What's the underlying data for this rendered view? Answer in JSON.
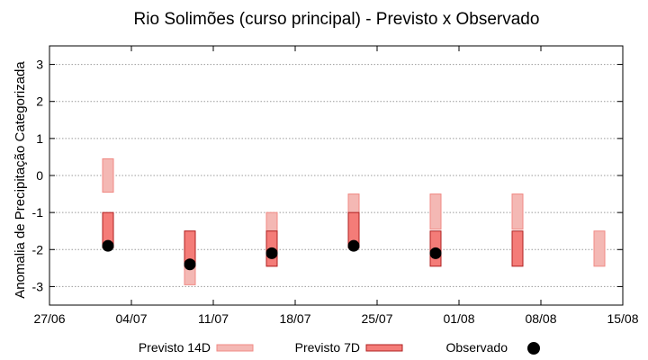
{
  "chart_data": {
    "type": "range-bar",
    "title": "Rio Solimões (curso principal) - Previsto x Observado",
    "xlabel": "",
    "ylabel": "Anomalia de Precipitação Categorizada",
    "ylim": [
      -3.5,
      3.5
    ],
    "yticks": [
      "-3",
      "-2",
      "-1",
      "0",
      "1",
      "2",
      "3"
    ],
    "xlim": [
      "2025-06-27",
      "2025-08-15"
    ],
    "xticks": [
      {
        "date": "2025-06-27",
        "label": "27/06"
      },
      {
        "date": "2025-07-04",
        "label": "04/07"
      },
      {
        "date": "2025-07-11",
        "label": "11/07"
      },
      {
        "date": "2025-07-18",
        "label": "18/07"
      },
      {
        "date": "2025-07-25",
        "label": "25/07"
      },
      {
        "date": "2025-08-01",
        "label": "01/08"
      },
      {
        "date": "2025-08-08",
        "label": "08/08"
      },
      {
        "date": "2025-08-15",
        "label": "15/08"
      }
    ],
    "grid": "horizontal-dotted",
    "legend_position": "bottom",
    "series": [
      {
        "name": "Previsto 14D",
        "kind": "range",
        "color": "#f4b8b4",
        "points": [
          {
            "date": "2025-07-02",
            "low": -0.45,
            "high": 0.45
          },
          {
            "date": "2025-07-09",
            "low": -2.95,
            "high": -1.5
          },
          {
            "date": "2025-07-16",
            "low": -2.45,
            "high": -1.0
          },
          {
            "date": "2025-07-23",
            "low": -1.95,
            "high": -0.5
          },
          {
            "date": "2025-07-30",
            "low": -1.45,
            "high": -0.5
          },
          {
            "date": "2025-08-06",
            "low": -1.45,
            "high": -0.5
          },
          {
            "date": "2025-08-13",
            "low": -2.45,
            "high": -1.5
          }
        ]
      },
      {
        "name": "Previsto 7D",
        "kind": "range",
        "color": "#f47c78",
        "points": [
          {
            "date": "2025-07-02",
            "low": -1.95,
            "high": -1.0
          },
          {
            "date": "2025-07-09",
            "low": -2.45,
            "high": -1.5
          },
          {
            "date": "2025-07-16",
            "low": -2.45,
            "high": -1.5
          },
          {
            "date": "2025-07-23",
            "low": -1.95,
            "high": -1.0
          },
          {
            "date": "2025-07-30",
            "low": -2.45,
            "high": -1.5
          },
          {
            "date": "2025-08-06",
            "low": -2.45,
            "high": -1.5
          }
        ]
      },
      {
        "name": "Observado",
        "kind": "point",
        "color": "#000000",
        "points": [
          {
            "date": "2025-07-02",
            "value": -1.9
          },
          {
            "date": "2025-07-09",
            "value": -2.4
          },
          {
            "date": "2025-07-16",
            "value": -2.1
          },
          {
            "date": "2025-07-23",
            "value": -1.9
          },
          {
            "date": "2025-07-30",
            "value": -2.1
          }
        ]
      }
    ]
  }
}
